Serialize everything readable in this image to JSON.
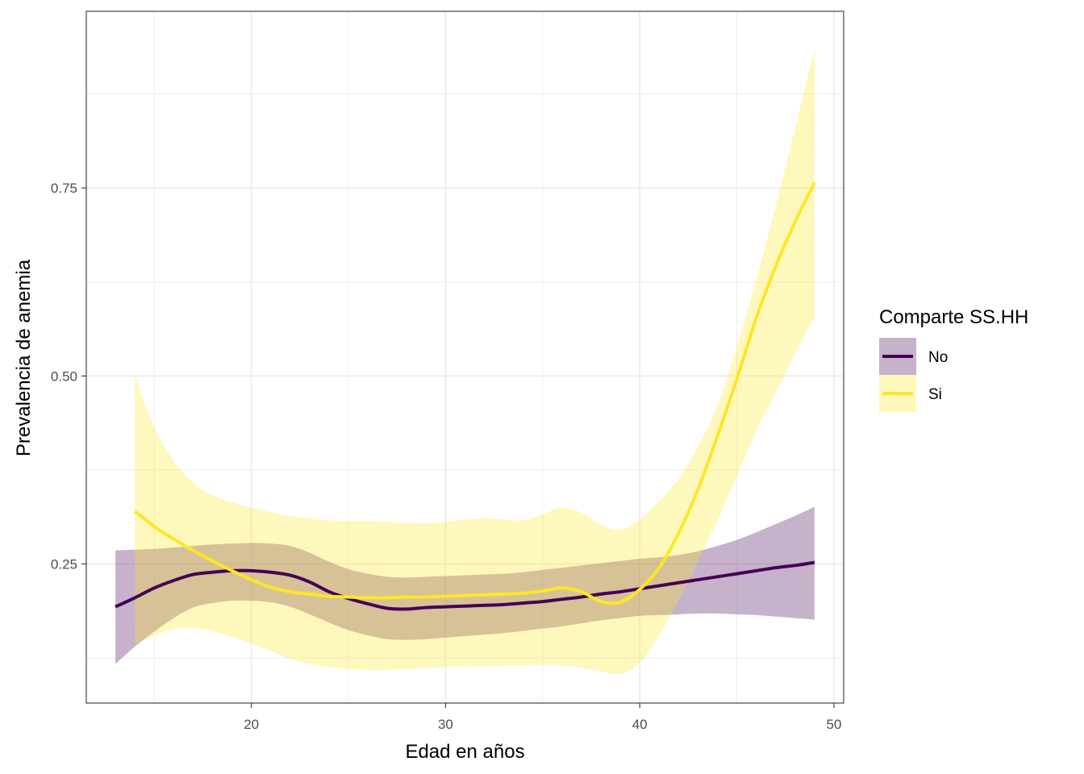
{
  "chart_data": {
    "type": "line",
    "title": "",
    "xlabel": "Edad en años",
    "ylabel": "Prevalencia de anemia",
    "xlim": [
      11.5,
      50.5
    ],
    "ylim": [
      0.065,
      0.985
    ],
    "x_ticks": [
      20,
      30,
      40,
      50
    ],
    "x_tick_labels": [
      "20",
      "30",
      "40",
      "50"
    ],
    "x_minor": [
      15,
      25,
      35,
      45
    ],
    "y_ticks": [
      0.25,
      0.5,
      0.75
    ],
    "y_tick_labels": [
      "0.25",
      "0.50",
      "0.75"
    ],
    "y_minor": [
      0.125,
      0.375,
      0.625,
      0.875
    ],
    "grid": true,
    "legend": {
      "title": "Comparte SS.HH",
      "position": "right"
    },
    "series": [
      {
        "name": "No",
        "color": "#440154",
        "fill": "#440154",
        "x": [
          13,
          14,
          15,
          16,
          17,
          18,
          19,
          20,
          21,
          22,
          23,
          24,
          25,
          26,
          27,
          28,
          29,
          30,
          31,
          32,
          33,
          34,
          35,
          36,
          37,
          38,
          39,
          40,
          41,
          42,
          43,
          44,
          45,
          46,
          47,
          48,
          49
        ],
        "y": [
          0.193,
          0.205,
          0.218,
          0.228,
          0.236,
          0.239,
          0.241,
          0.241,
          0.239,
          0.235,
          0.226,
          0.213,
          0.204,
          0.197,
          0.191,
          0.19,
          0.192,
          0.193,
          0.194,
          0.195,
          0.196,
          0.198,
          0.2,
          0.203,
          0.206,
          0.21,
          0.213,
          0.217,
          0.221,
          0.225,
          0.229,
          0.233,
          0.237,
          0.241,
          0.245,
          0.248,
          0.252
        ],
        "lower": [
          0.117,
          0.14,
          0.16,
          0.178,
          0.192,
          0.198,
          0.201,
          0.201,
          0.199,
          0.193,
          0.183,
          0.172,
          0.162,
          0.155,
          0.15,
          0.149,
          0.15,
          0.152,
          0.154,
          0.156,
          0.158,
          0.161,
          0.164,
          0.167,
          0.171,
          0.175,
          0.178,
          0.181,
          0.182,
          0.183,
          0.184,
          0.184,
          0.183,
          0.182,
          0.18,
          0.178,
          0.176
        ],
        "upper": [
          0.268,
          0.269,
          0.27,
          0.272,
          0.274,
          0.276,
          0.277,
          0.278,
          0.277,
          0.274,
          0.265,
          0.253,
          0.243,
          0.237,
          0.233,
          0.232,
          0.233,
          0.234,
          0.235,
          0.236,
          0.237,
          0.239,
          0.242,
          0.245,
          0.248,
          0.251,
          0.254,
          0.257,
          0.259,
          0.262,
          0.267,
          0.274,
          0.282,
          0.292,
          0.303,
          0.314,
          0.326
        ]
      },
      {
        "name": "Si",
        "color": "#fde725",
        "fill": "#fde725",
        "x": [
          14,
          15,
          16,
          17,
          18,
          19,
          20,
          21,
          22,
          23,
          24,
          25,
          26,
          27,
          28,
          29,
          30,
          31,
          32,
          33,
          34,
          35,
          36,
          37,
          38,
          39,
          40,
          41,
          42,
          43,
          44,
          45,
          46,
          47,
          48,
          49
        ],
        "y": [
          0.32,
          0.3,
          0.283,
          0.268,
          0.254,
          0.241,
          0.229,
          0.219,
          0.213,
          0.21,
          0.207,
          0.206,
          0.205,
          0.205,
          0.206,
          0.206,
          0.207,
          0.208,
          0.209,
          0.21,
          0.211,
          0.214,
          0.218,
          0.213,
          0.2,
          0.199,
          0.216,
          0.245,
          0.291,
          0.349,
          0.42,
          0.496,
          0.577,
          0.646,
          0.705,
          0.757
        ],
        "lower": [
          0.143,
          0.155,
          0.163,
          0.165,
          0.16,
          0.153,
          0.144,
          0.134,
          0.124,
          0.117,
          0.113,
          0.11,
          0.109,
          0.109,
          0.11,
          0.112,
          0.113,
          0.114,
          0.114,
          0.115,
          0.115,
          0.116,
          0.115,
          0.112,
          0.107,
          0.104,
          0.118,
          0.155,
          0.201,
          0.253,
          0.308,
          0.367,
          0.427,
          0.478,
          0.53,
          0.578
        ],
        "upper": [
          0.5,
          0.432,
          0.387,
          0.358,
          0.341,
          0.332,
          0.325,
          0.319,
          0.314,
          0.311,
          0.308,
          0.307,
          0.307,
          0.306,
          0.305,
          0.304,
          0.306,
          0.309,
          0.311,
          0.309,
          0.308,
          0.316,
          0.325,
          0.318,
          0.302,
          0.296,
          0.309,
          0.334,
          0.363,
          0.406,
          0.461,
          0.539,
          0.628,
          0.726,
          0.83,
          0.934
        ]
      }
    ]
  }
}
